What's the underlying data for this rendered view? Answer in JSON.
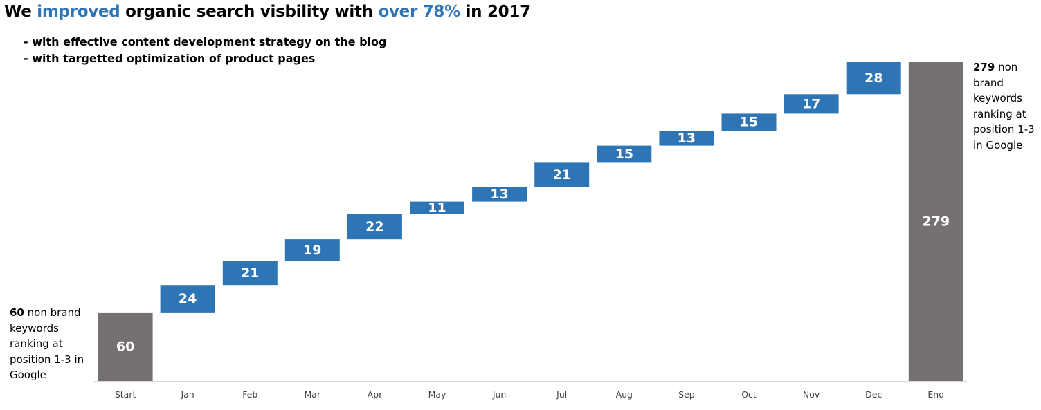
{
  "title": {
    "part1": "We ",
    "hl1": "improved",
    "part2": " organic search visbility with ",
    "hl2": "over 78%",
    "part3": " in 2017"
  },
  "bullets": [
    "- with effective content development strategy on the blog",
    "- with targetted optimization of product pages"
  ],
  "notes": {
    "start": {
      "value": "60",
      "text": " non brand keywords ranking at position 1-3 in Google"
    },
    "end": {
      "value": "279",
      "text": " non brand keywords ranking at position 1-3 in Google"
    }
  },
  "colors": {
    "accent": "#2e75b6",
    "total": "#767171",
    "axis": "#d9d9d9"
  },
  "chart_data": {
    "type": "bar",
    "subtype": "waterfall",
    "categories": [
      "Start",
      "Jan",
      "Feb",
      "Mar",
      "Apr",
      "May",
      "Jun",
      "Jul",
      "Aug",
      "Sep",
      "Oct",
      "Nov",
      "Dec",
      "End"
    ],
    "values": [
      60,
      24,
      21,
      19,
      22,
      11,
      13,
      21,
      15,
      13,
      15,
      17,
      28,
      279
    ],
    "kinds": [
      "total",
      "increase",
      "increase",
      "increase",
      "increase",
      "increase",
      "increase",
      "increase",
      "increase",
      "increase",
      "increase",
      "increase",
      "increase",
      "total"
    ],
    "ylim": [
      0,
      279
    ],
    "grid": false,
    "legend": "none"
  }
}
